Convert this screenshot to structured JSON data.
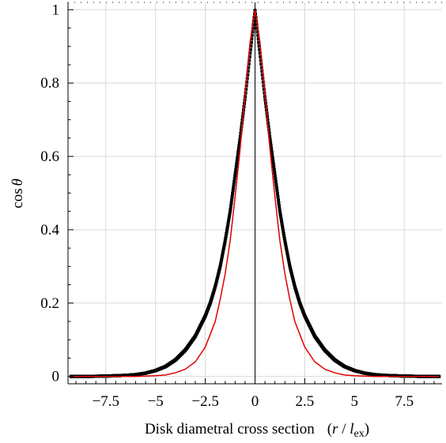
{
  "chart_data": {
    "type": "scatter",
    "xlabel": {
      "text": "Disk diametral cross section",
      "unit_prefix": "(",
      "unit_var": "r",
      "unit_sep": " / ",
      "unit_sym": "l",
      "unit_sub": "ex",
      "unit_suffix": ")"
    },
    "ylabel": {
      "func": "cos",
      "var": "θ"
    },
    "xlim": [
      -9.4,
      9.4
    ],
    "ylim": [
      -0.02,
      1.02
    ],
    "xticks": [
      {
        "value": -7.5,
        "label": "−7.5"
      },
      {
        "value": -5,
        "label": "−5"
      },
      {
        "value": -2.5,
        "label": "−2.5"
      },
      {
        "value": 0,
        "label": "0"
      },
      {
        "value": 2.5,
        "label": "2.5"
      },
      {
        "value": 5,
        "label": "5"
      },
      {
        "value": 7.5,
        "label": "7.5"
      }
    ],
    "yticks": [
      {
        "value": 0,
        "label": "0"
      },
      {
        "value": 0.2,
        "label": "0.2"
      },
      {
        "value": 0.4,
        "label": "0.4"
      },
      {
        "value": 0.6,
        "label": "0.6"
      },
      {
        "value": 0.8,
        "label": "0.8"
      },
      {
        "value": 1,
        "label": "1"
      }
    ],
    "grid": true,
    "series": [
      {
        "style": "points",
        "color": "#000000",
        "x": [
          -9.25,
          -8.5,
          -7.5,
          -6.5,
          -6.0,
          -5.5,
          -5.0,
          -4.5,
          -4.0,
          -3.5,
          -3.0,
          -2.5,
          -2.25,
          -2.0,
          -1.75,
          -1.5,
          -1.25,
          -1.0,
          -0.75,
          -0.5,
          -0.25,
          0,
          0.25,
          0.5,
          0.75,
          1.0,
          1.25,
          1.5,
          1.75,
          2.0,
          2.25,
          2.5,
          3.0,
          3.5,
          4.0,
          4.5,
          5.0,
          5.5,
          6.0,
          6.5,
          7.5,
          8.5,
          9.25
        ],
        "y": [
          0.0,
          0.0,
          0.001,
          0.003,
          0.005,
          0.009,
          0.016,
          0.027,
          0.045,
          0.072,
          0.11,
          0.165,
          0.2,
          0.245,
          0.3,
          0.37,
          0.45,
          0.55,
          0.65,
          0.76,
          0.88,
          0.998,
          0.88,
          0.76,
          0.65,
          0.55,
          0.45,
          0.37,
          0.3,
          0.245,
          0.2,
          0.165,
          0.11,
          0.072,
          0.045,
          0.027,
          0.016,
          0.009,
          0.005,
          0.003,
          0.001,
          0.0,
          0.0
        ]
      },
      {
        "style": "line",
        "color": "#e00000",
        "x": [
          -9.25,
          -6.0,
          -5.0,
          -4.5,
          -4.0,
          -3.5,
          -3.0,
          -2.5,
          -2.0,
          -1.75,
          -1.5,
          -1.25,
          -1.0,
          -0.75,
          -0.5,
          -0.25,
          0,
          0.25,
          0.5,
          0.75,
          1.0,
          1.25,
          1.5,
          1.75,
          2.0,
          2.5,
          3.0,
          3.5,
          4.0,
          4.5,
          5.0,
          6.0,
          9.25
        ],
        "y": [
          0.0,
          0.0,
          0.002,
          0.004,
          0.01,
          0.02,
          0.04,
          0.08,
          0.15,
          0.21,
          0.28,
          0.37,
          0.49,
          0.62,
          0.77,
          0.91,
          0.998,
          0.91,
          0.77,
          0.62,
          0.49,
          0.37,
          0.28,
          0.21,
          0.15,
          0.08,
          0.04,
          0.02,
          0.01,
          0.004,
          0.002,
          0.0,
          0.0
        ]
      }
    ]
  }
}
